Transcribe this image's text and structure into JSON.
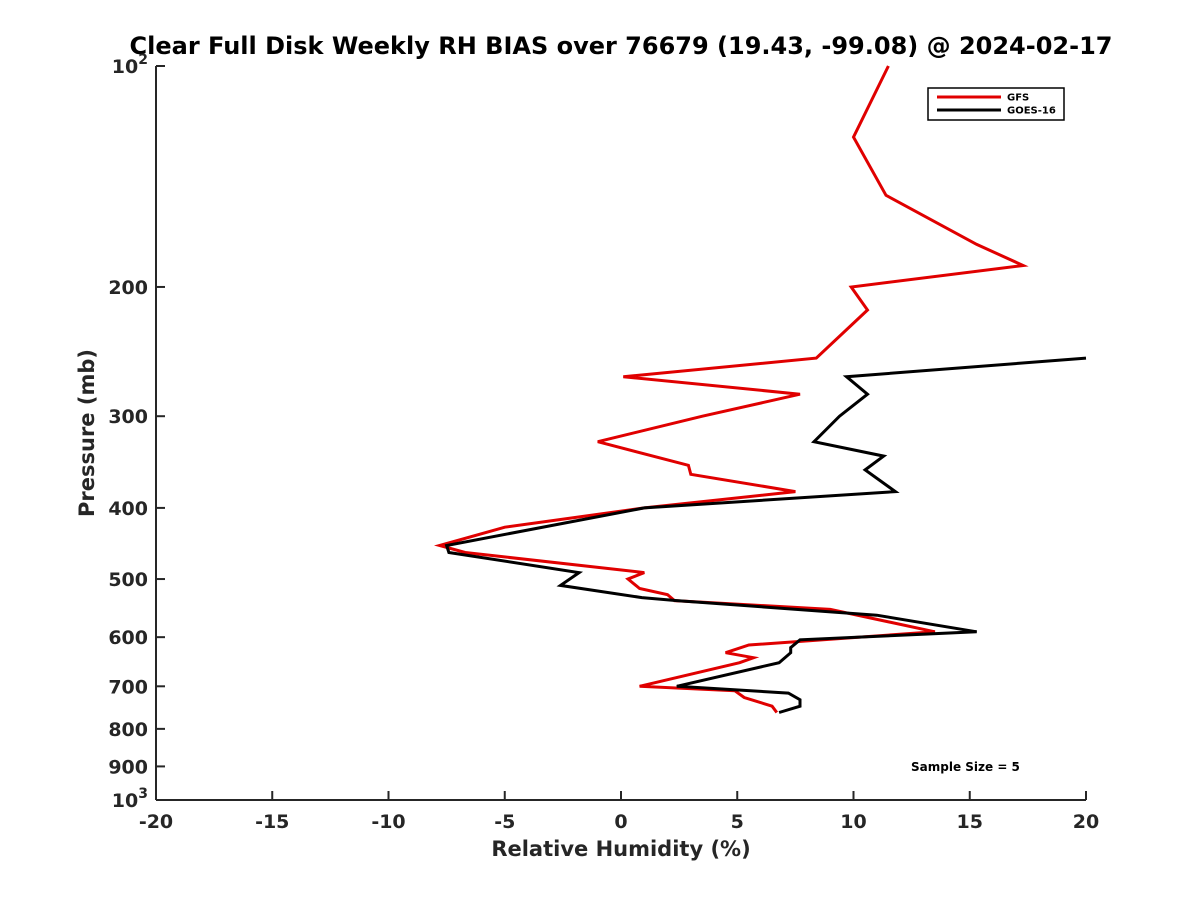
{
  "chart_data": {
    "type": "line",
    "title": "Clear Full Disk Weekly RH BIAS over 76679 (19.43, -99.08) @ 2024-02-17",
    "xlabel": "Relative Humidity (%)",
    "ylabel": "Pressure (mb)",
    "xlim": [
      -20,
      20
    ],
    "ylim": [
      100,
      1000
    ],
    "yscale": "log",
    "y_reversed": true,
    "grid": false,
    "legend_position": "top-right",
    "x_ticks": [
      "-20",
      "-15",
      "-10",
      "-5",
      "0",
      "5",
      "10",
      "15",
      "20"
    ],
    "y_ticks": [
      {
        "value": 100,
        "base": "10",
        "exp": "2"
      },
      {
        "value": 200,
        "label": "200"
      },
      {
        "value": 300,
        "label": "300"
      },
      {
        "value": 400,
        "label": "400"
      },
      {
        "value": 500,
        "label": "500"
      },
      {
        "value": 600,
        "label": "600"
      },
      {
        "value": 700,
        "label": "700"
      },
      {
        "value": 800,
        "label": "800"
      },
      {
        "value": 900,
        "label": "900"
      },
      {
        "value": 1000,
        "base": "10",
        "exp": "3"
      }
    ],
    "annotation": "Sample Size = 5",
    "series": [
      {
        "name": "GFS",
        "color": "#e00000",
        "points": [
          [
            11.5,
            100
          ],
          [
            10.0,
            125
          ],
          [
            11.4,
            150
          ],
          [
            15.3,
            175
          ],
          [
            17.3,
            187
          ],
          [
            9.9,
            200
          ],
          [
            10.6,
            215
          ],
          [
            8.4,
            250
          ],
          [
            0.1,
            265
          ],
          [
            7.7,
            280
          ],
          [
            3.5,
            300
          ],
          [
            -1.0,
            325
          ],
          [
            2.9,
            350
          ],
          [
            3.0,
            360
          ],
          [
            7.5,
            380
          ],
          [
            1.0,
            400
          ],
          [
            -5.0,
            425
          ],
          [
            -7.8,
            450
          ],
          [
            -6.7,
            460
          ],
          [
            1.0,
            490
          ],
          [
            0.3,
            500
          ],
          [
            0.8,
            515
          ],
          [
            2.0,
            525
          ],
          [
            2.3,
            535
          ],
          [
            9.0,
            550
          ],
          [
            13.5,
            590
          ],
          [
            5.5,
            615
          ],
          [
            4.5,
            630
          ],
          [
            5.7,
            640
          ],
          [
            5.1,
            650
          ],
          [
            0.8,
            700
          ],
          [
            4.9,
            710
          ],
          [
            5.3,
            725
          ],
          [
            6.5,
            745
          ],
          [
            6.7,
            760
          ]
        ]
      },
      {
        "name": "GOES-16",
        "color": "#000000",
        "points": [
          [
            20.0,
            250
          ],
          [
            9.7,
            265
          ],
          [
            10.6,
            280
          ],
          [
            9.4,
            300
          ],
          [
            8.3,
            325
          ],
          [
            11.3,
            340
          ],
          [
            10.5,
            355
          ],
          [
            11.8,
            380
          ],
          [
            1.0,
            400
          ],
          [
            -7.5,
            450
          ],
          [
            -7.4,
            460
          ],
          [
            -1.8,
            490
          ],
          [
            -2.6,
            510
          ],
          [
            0.9,
            530
          ],
          [
            2.4,
            535
          ],
          [
            11.0,
            560
          ],
          [
            15.3,
            590
          ],
          [
            7.7,
            605
          ],
          [
            7.3,
            620
          ],
          [
            7.3,
            630
          ],
          [
            6.8,
            650
          ],
          [
            2.4,
            700
          ],
          [
            7.2,
            715
          ],
          [
            7.7,
            730
          ],
          [
            7.7,
            745
          ],
          [
            6.8,
            760
          ]
        ]
      }
    ]
  }
}
